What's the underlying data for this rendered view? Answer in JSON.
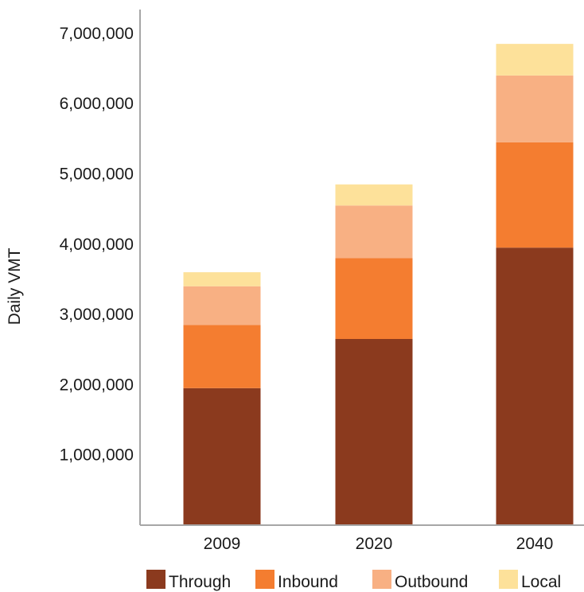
{
  "chart_data": {
    "type": "bar",
    "stacked": true,
    "ylabel": "Daily VMT",
    "categories": [
      "2009",
      "2020",
      "2040"
    ],
    "yticks": [
      "1,000,000",
      "2,000,000",
      "3,000,000",
      "4,000,000",
      "5,000,000",
      "6,000,000",
      "7,000,000"
    ],
    "ylim": [
      0,
      7000000
    ],
    "grid": false,
    "legend_position": "bottom",
    "series": [
      {
        "name": "Through",
        "color": "#8b3a1e",
        "values": [
          1950000,
          2650000,
          3950000
        ]
      },
      {
        "name": "Inbound",
        "color": "#f47d30",
        "values": [
          900000,
          1150000,
          1500000
        ]
      },
      {
        "name": "Outbound",
        "color": "#f8b083",
        "values": [
          550000,
          750000,
          950000
        ]
      },
      {
        "name": "Local",
        "color": "#fde19a",
        "values": [
          200000,
          300000,
          450000
        ]
      }
    ]
  }
}
